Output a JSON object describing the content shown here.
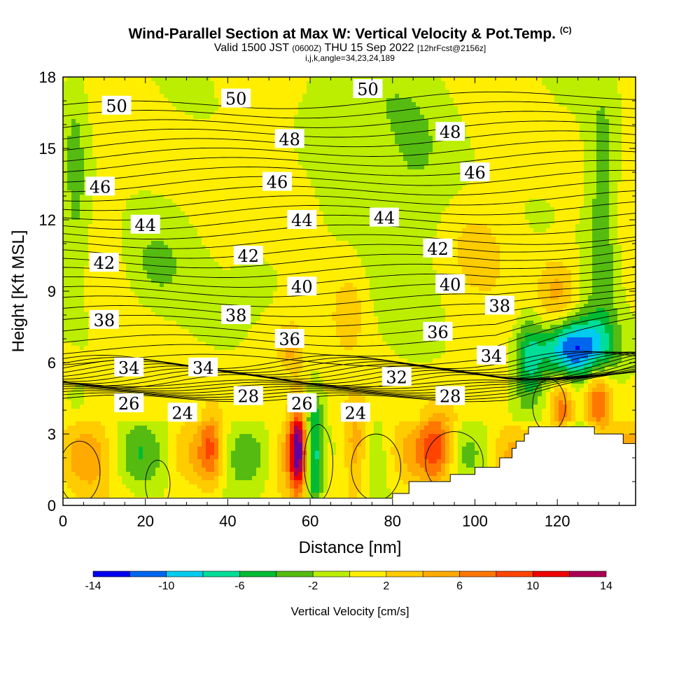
{
  "header": {
    "title": "Wind-Parallel Section at Max W: Vertical Velocity & Pot.Temp.",
    "copyright": "(C)",
    "valid_prefix": "Valid 1500 JST",
    "valid_utc": "(0600Z)",
    "valid_date": "THU 15 Sep 2022",
    "forecast": "[12hrFcst@2156z]",
    "params": "i,j,k,angle=34,23,24,189"
  },
  "chart_data": {
    "type": "heatmap",
    "title": "Wind-Parallel Section at Max W: Vertical Velocity & Pot.Temp.",
    "xlabel": "Distance [nm]",
    "ylabel": "Height [Kft MSL]",
    "xlim": [
      0,
      139
    ],
    "ylim": [
      0,
      18
    ],
    "x_ticks": [
      0,
      20,
      40,
      60,
      80,
      100,
      120
    ],
    "y_ticks": [
      0,
      3,
      6,
      9,
      12,
      15,
      18
    ],
    "x_tick_labels": [
      "0",
      "20",
      "40",
      "60",
      "80",
      "100",
      "120"
    ],
    "y_tick_labels": [
      "0",
      "3",
      "6",
      "9",
      "12",
      "15",
      "18"
    ],
    "colorbar": {
      "label": "Vertical Velocity [cm/s]",
      "levels": [
        -14,
        -12,
        -10,
        -8,
        -6,
        -4,
        -2,
        0,
        2,
        4,
        6,
        8,
        10,
        12,
        14
      ],
      "tick_labels": [
        "-14",
        "-10",
        "-6",
        "-2",
        "2",
        "6",
        "10",
        "14"
      ],
      "tick_values": [
        -14,
        -10,
        -6,
        -2,
        2,
        6,
        10,
        14
      ],
      "colors": [
        "#0000ee",
        "#0066ee",
        "#00ccee",
        "#00dd99",
        "#00bb33",
        "#55bb11",
        "#bbee00",
        "#ffee00",
        "#ffcc00",
        "#ffaa00",
        "#ff7700",
        "#ff4400",
        "#ee0000",
        "#aa0055",
        "#660099"
      ]
    },
    "theta_labels": [
      {
        "text": "50",
        "x": 13,
        "y": 16.8
      },
      {
        "text": "50",
        "x": 42,
        "y": 17.1
      },
      {
        "text": "50",
        "x": 74,
        "y": 17.5
      },
      {
        "text": "48",
        "x": 55,
        "y": 15.4
      },
      {
        "text": "48",
        "x": 94,
        "y": 15.7
      },
      {
        "text": "46",
        "x": 9,
        "y": 13.4
      },
      {
        "text": "46",
        "x": 52,
        "y": 13.6
      },
      {
        "text": "46",
        "x": 100,
        "y": 14.0
      },
      {
        "text": "44",
        "x": 20,
        "y": 11.8
      },
      {
        "text": "44",
        "x": 58,
        "y": 12.0
      },
      {
        "text": "44",
        "x": 78,
        "y": 12.1
      },
      {
        "text": "42",
        "x": 10,
        "y": 10.2
      },
      {
        "text": "42",
        "x": 45,
        "y": 10.5
      },
      {
        "text": "42",
        "x": 91,
        "y": 10.8
      },
      {
        "text": "40",
        "x": 58,
        "y": 9.2
      },
      {
        "text": "40",
        "x": 94,
        "y": 9.3
      },
      {
        "text": "38",
        "x": 10,
        "y": 7.8
      },
      {
        "text": "38",
        "x": 42,
        "y": 8.0
      },
      {
        "text": "38",
        "x": 106,
        "y": 8.4
      },
      {
        "text": "36",
        "x": 55,
        "y": 7.0
      },
      {
        "text": "36",
        "x": 91,
        "y": 7.3
      },
      {
        "text": "34",
        "x": 16,
        "y": 5.8
      },
      {
        "text": "34",
        "x": 34,
        "y": 5.8
      },
      {
        "text": "34",
        "x": 104,
        "y": 6.3
      },
      {
        "text": "32",
        "x": 81,
        "y": 5.4
      },
      {
        "text": "28",
        "x": 45,
        "y": 4.6
      },
      {
        "text": "28",
        "x": 94,
        "y": 4.6
      },
      {
        "text": "26",
        "x": 16,
        "y": 4.3
      },
      {
        "text": "26",
        "x": 58,
        "y": 4.3
      },
      {
        "text": "24",
        "x": 29,
        "y": 3.9
      },
      {
        "text": "24",
        "x": 71,
        "y": 3.9
      }
    ],
    "terrain": [
      [
        0,
        0.3
      ],
      [
        80,
        0.3
      ],
      [
        80,
        0.5
      ],
      [
        84,
        0.5
      ],
      [
        84,
        1.0
      ],
      [
        94,
        1.0
      ],
      [
        94,
        1.3
      ],
      [
        100,
        1.3
      ],
      [
        100,
        1.6
      ],
      [
        106,
        1.6
      ],
      [
        106,
        2.0
      ],
      [
        109,
        2.0
      ],
      [
        109,
        2.4
      ],
      [
        110,
        2.4
      ],
      [
        110,
        2.7
      ],
      [
        112,
        2.7
      ],
      [
        112,
        3.0
      ],
      [
        113,
        3.0
      ],
      [
        113,
        3.3
      ],
      [
        129,
        3.3
      ],
      [
        129,
        3.0
      ],
      [
        136,
        3.0
      ],
      [
        136,
        2.6
      ],
      [
        139,
        2.6
      ]
    ]
  }
}
